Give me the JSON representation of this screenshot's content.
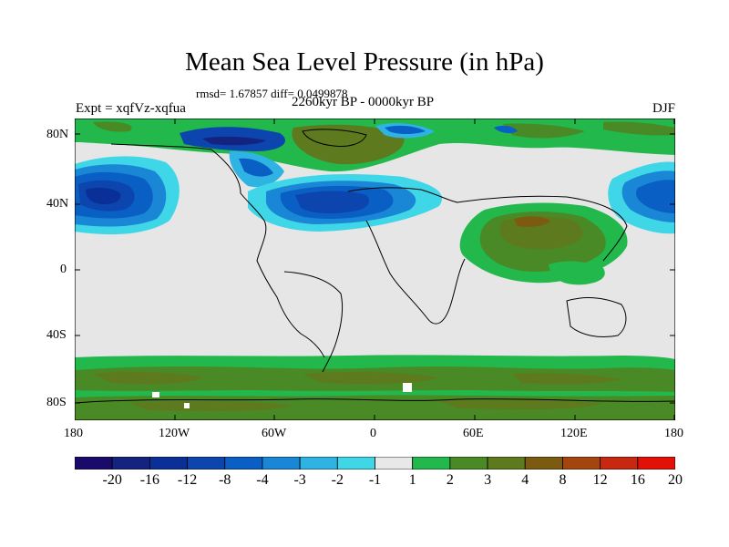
{
  "map": {
    "title": "Mean Sea Level Pressure (in hPa)",
    "stats": "rmsd= 1.67857 diff= 0.0499878",
    "experiment": "Expt = xqfVz-xqfua",
    "period": "2260kyr BP - 0000kyr BP",
    "season": "DJF",
    "lat_labels": [
      "80N",
      "40N",
      "0",
      "40S",
      "80S"
    ],
    "lon_labels": [
      "180",
      "120W",
      "60W",
      "0",
      "60E",
      "120E",
      "180"
    ],
    "colorbar": {
      "labels": [
        "-20",
        "-16",
        "-12",
        "-8",
        "-4",
        "-3",
        "-2",
        "-1",
        "1",
        "2",
        "3",
        "4",
        "8",
        "12",
        "16",
        "20"
      ],
      "colors": [
        "#1a0a6b",
        "#14237f",
        "#0a2f96",
        "#0b45ad",
        "#0a5fc4",
        "#1a86d6",
        "#2fb3e3",
        "#3fd7e8",
        "#e8e8e8",
        "#22b84c",
        "#4a8a26",
        "#5e7a1e",
        "#7c5a10",
        "#a3450c",
        "#c92810",
        "#e21007"
      ]
    },
    "colors": {
      "neutral": "#e6e6e6",
      "coast": "#000000"
    }
  }
}
